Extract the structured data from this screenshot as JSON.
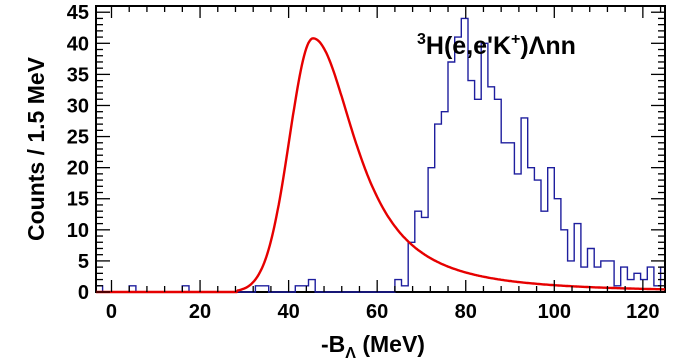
{
  "chart_data": {
    "type": "histogram",
    "xlabel_main": "-B",
    "xlabel_sub": "Λ",
    "xlabel_unit": " (MeV)",
    "ylabel": "Counts / 1.5 MeV",
    "xlim": [
      -3.5,
      125
    ],
    "ylim": [
      0,
      46
    ],
    "x_ticks": [
      0,
      20,
      40,
      60,
      80,
      100,
      120
    ],
    "x_tick_labels": [
      "0",
      "20",
      "40",
      "60",
      "80",
      "100",
      "120"
    ],
    "y_ticks": [
      0,
      5,
      10,
      15,
      20,
      25,
      30,
      35,
      40,
      45
    ],
    "y_tick_labels": [
      "0",
      "5",
      "10",
      "15",
      "20",
      "25",
      "30",
      "35",
      "40",
      "45"
    ],
    "annotation": {
      "mass_number": "3",
      "reaction": "H(e,e'K",
      "charge": "+",
      "products": ")Λnn"
    },
    "histogram": {
      "bin_width": 1.5,
      "x_start": -3.5,
      "color": "#1e1e9e",
      "counts": [
        1,
        0,
        0,
        0,
        0,
        1,
        0,
        0,
        0,
        0,
        0,
        0,
        0,
        1,
        0,
        0,
        0,
        0,
        0,
        0,
        0,
        0,
        0,
        0,
        1,
        1,
        0,
        0,
        0,
        0,
        1,
        1,
        2,
        0,
        0,
        0,
        0,
        0,
        0,
        0,
        0,
        0,
        0,
        0,
        0,
        2,
        1,
        8,
        13,
        12,
        20,
        27,
        29,
        37,
        41,
        44,
        34,
        31,
        40,
        33,
        31,
        24,
        24,
        19,
        28,
        20,
        18,
        13,
        20,
        15,
        10,
        5,
        11,
        4,
        7,
        4,
        5,
        5,
        1,
        4,
        2,
        3,
        2,
        4,
        1,
        4,
        2,
        3,
        1,
        2,
        2,
        2,
        2,
        1,
        1,
        0,
        0,
        1,
        2,
        0,
        0,
        1,
        1,
        1,
        0,
        0,
        1,
        0,
        0,
        0,
        1,
        2,
        0,
        1,
        1,
        0,
        1,
        0,
        1,
        1,
        1,
        0,
        0,
        1,
        0,
        0,
        1,
        0
      ]
    },
    "fit": {
      "color": "#e60000",
      "peak_x": 45.5,
      "peak_y": 40.8,
      "width_left": 5.3,
      "decay_right": 12.5,
      "onset_x": 28.5
    }
  }
}
